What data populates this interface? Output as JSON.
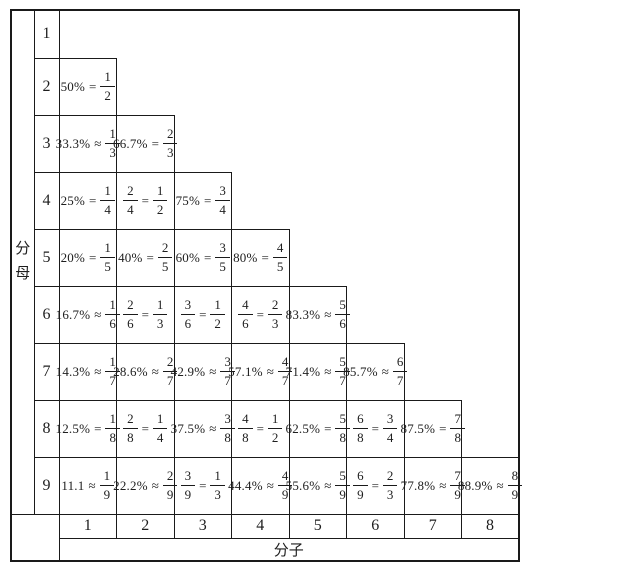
{
  "colors": {
    "background": "#ffffff",
    "line": "#1a1a1a",
    "text": "#1e1e1e"
  },
  "table": {
    "axis": {
      "left_label": "分母",
      "bottom_label": "分子"
    },
    "row_headers": [
      "1",
      "2",
      "3",
      "4",
      "5",
      "6",
      "7",
      "8",
      "9"
    ],
    "col_headers": [
      "1",
      "2",
      "3",
      "4",
      "5",
      "6",
      "7",
      "8"
    ],
    "rows": [
      {
        "denominator": "1",
        "cells": []
      },
      {
        "denominator": "2",
        "cells": [
          {
            "lead": "50%",
            "rel": "=",
            "num": "1",
            "den": "2"
          }
        ]
      },
      {
        "denominator": "3",
        "cells": [
          {
            "lead": "33.3%",
            "rel": "≈",
            "num": "1",
            "den": "3"
          },
          {
            "lead": "66.7%",
            "rel": "=",
            "num": "2",
            "den": "3"
          }
        ]
      },
      {
        "denominator": "4",
        "cells": [
          {
            "lead": "25%",
            "rel": "=",
            "num": "1",
            "den": "4"
          },
          {
            "lead_num": "2",
            "lead_den": "4",
            "rel": "=",
            "num": "1",
            "den": "2"
          },
          {
            "lead": "75%",
            "rel": "=",
            "num": "3",
            "den": "4"
          }
        ]
      },
      {
        "denominator": "5",
        "cells": [
          {
            "lead": "20%",
            "rel": "=",
            "num": "1",
            "den": "5"
          },
          {
            "lead": "40%",
            "rel": "=",
            "num": "2",
            "den": "5"
          },
          {
            "lead": "60%",
            "rel": "=",
            "num": "3",
            "den": "5"
          },
          {
            "lead": "80%",
            "rel": "=",
            "num": "4",
            "den": "5"
          }
        ]
      },
      {
        "denominator": "6",
        "cells": [
          {
            "lead": "16.7%",
            "rel": "≈",
            "num": "1",
            "den": "6"
          },
          {
            "lead_num": "2",
            "lead_den": "6",
            "rel": "=",
            "num": "1",
            "den": "3"
          },
          {
            "lead_num": "3",
            "lead_den": "6",
            "rel": "=",
            "num": "1",
            "den": "2"
          },
          {
            "lead_num": "4",
            "lead_den": "6",
            "rel": "=",
            "num": "2",
            "den": "3"
          },
          {
            "lead": "83.3%",
            "rel": "≈",
            "num": "5",
            "den": "6"
          }
        ]
      },
      {
        "denominator": "7",
        "cells": [
          {
            "lead": "14.3%",
            "rel": "≈",
            "num": "1",
            "den": "7"
          },
          {
            "lead": "28.6%",
            "rel": "≈",
            "num": "2",
            "den": "7"
          },
          {
            "lead": "42.9%",
            "rel": "≈",
            "num": "3",
            "den": "7"
          },
          {
            "lead": "57.1%",
            "rel": "≈",
            "num": "4",
            "den": "7"
          },
          {
            "lead": "71.4%",
            "rel": "≈",
            "num": "5",
            "den": "7"
          },
          {
            "lead": "85.7%",
            "rel": "≈",
            "num": "6",
            "den": "7"
          }
        ]
      },
      {
        "denominator": "8",
        "cells": [
          {
            "lead": "12.5%",
            "rel": "=",
            "num": "1",
            "den": "8"
          },
          {
            "lead_num": "2",
            "lead_den": "8",
            "rel": "=",
            "num": "1",
            "den": "4"
          },
          {
            "lead": "37.5%",
            "rel": "≈",
            "num": "3",
            "den": "8"
          },
          {
            "lead_num": "4",
            "lead_den": "8",
            "rel": "=",
            "num": "1",
            "den": "2"
          },
          {
            "lead": "62.5%",
            "rel": "=",
            "num": "5",
            "den": "8"
          },
          {
            "lead_num": "6",
            "lead_den": "8",
            "rel": "=",
            "num": "3",
            "den": "4"
          },
          {
            "lead": "87.5%",
            "rel": "=",
            "num": "7",
            "den": "8"
          }
        ]
      },
      {
        "denominator": "9",
        "cells": [
          {
            "lead": "11.1",
            "rel": "≈",
            "num": "1",
            "den": "9"
          },
          {
            "lead": "22.2%",
            "rel": "≈",
            "num": "2",
            "den": "9"
          },
          {
            "lead_num": "3",
            "lead_den": "9",
            "rel": "=",
            "num": "1",
            "den": "3"
          },
          {
            "lead": "44.4%",
            "rel": "≈",
            "num": "4",
            "den": "9"
          },
          {
            "lead": "55.6%",
            "rel": "≈",
            "num": "5",
            "den": "9"
          },
          {
            "lead_num": "6",
            "lead_den": "9",
            "rel": "=",
            "num": "2",
            "den": "3"
          },
          {
            "lead": "77.8%",
            "rel": "≈",
            "num": "7",
            "den": "9"
          },
          {
            "lead": "88.9%",
            "rel": "≈",
            "num": "8",
            "den": "9"
          }
        ]
      }
    ]
  }
}
